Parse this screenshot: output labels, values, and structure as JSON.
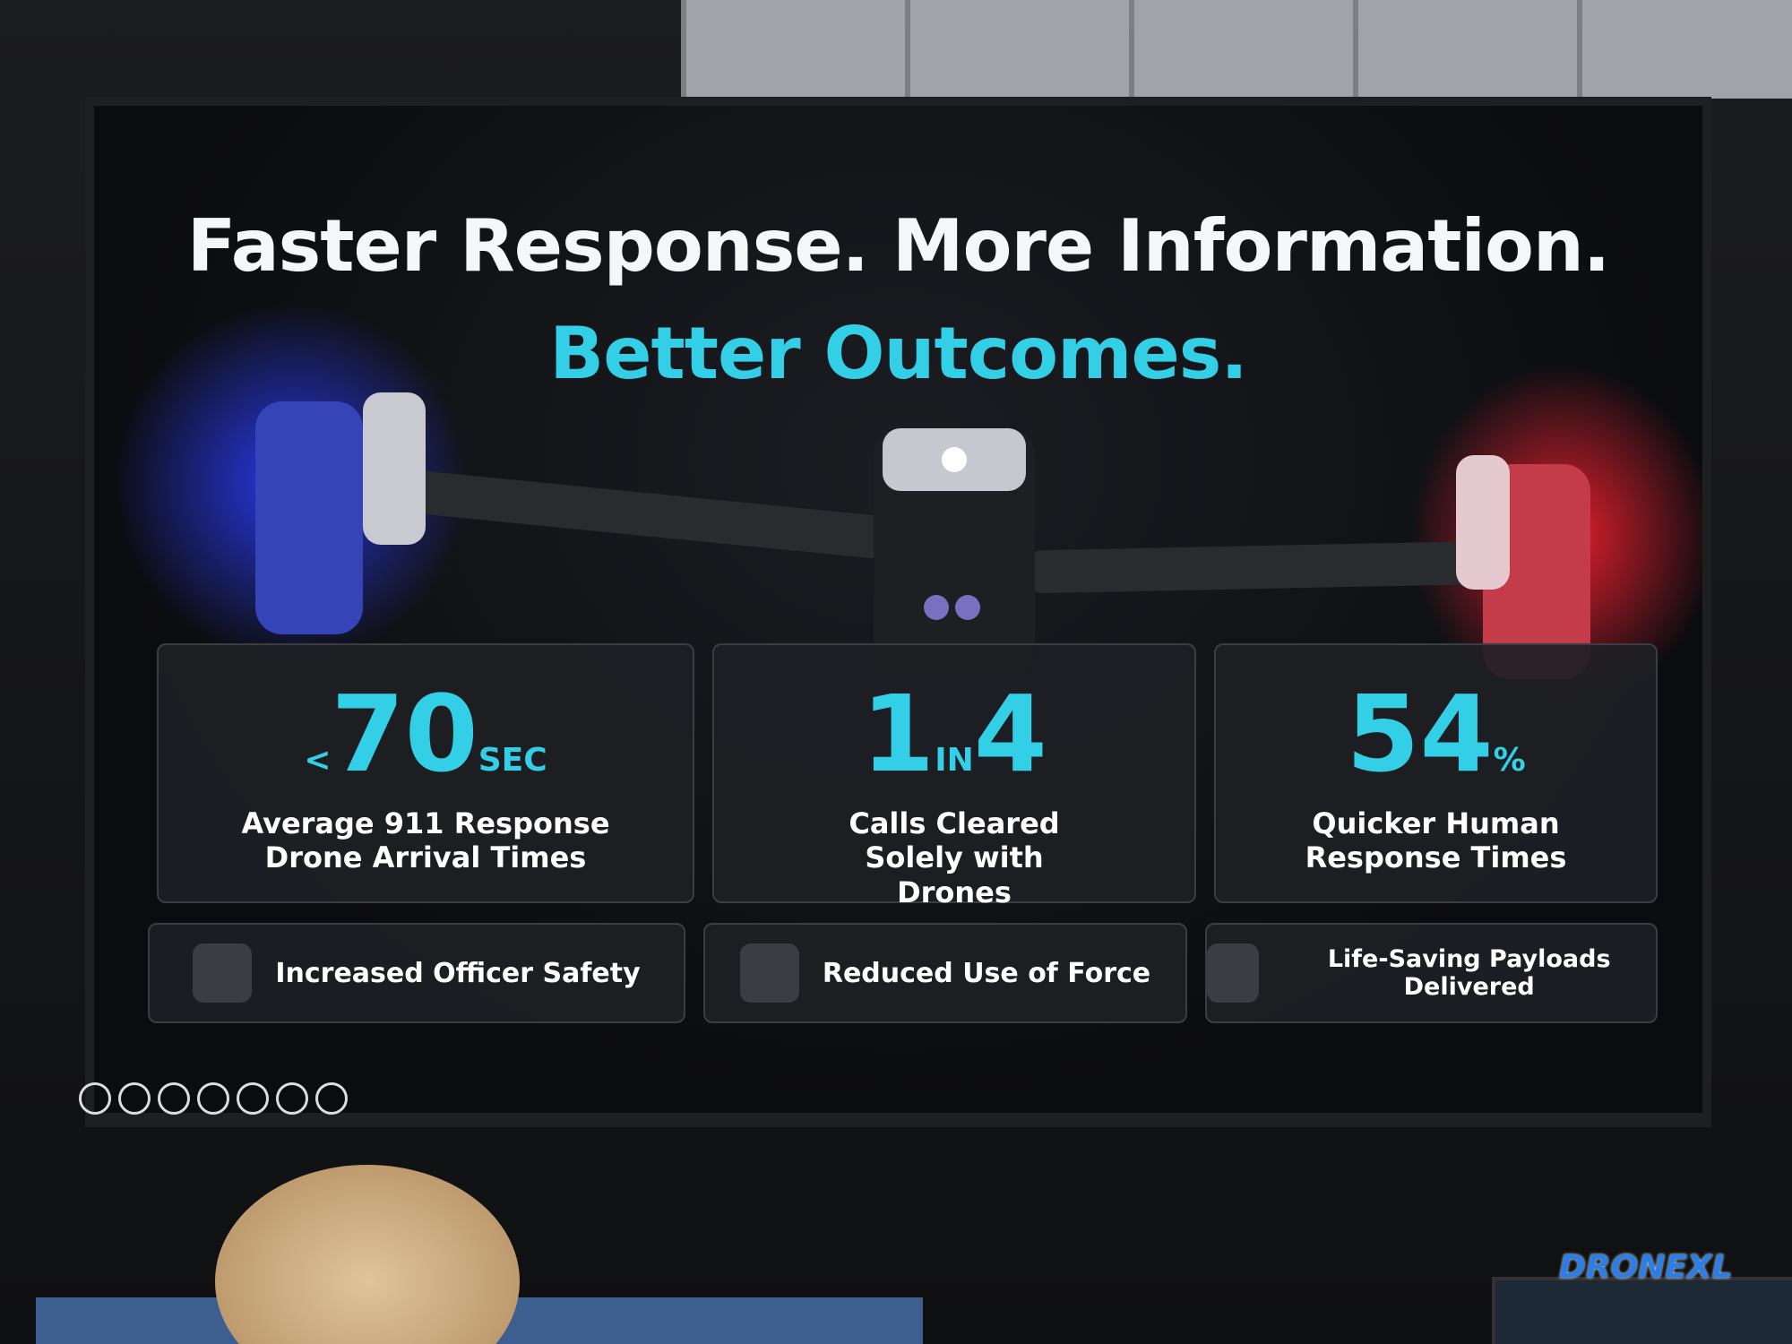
{
  "slide": {
    "title_line1": "Faster Response. More Information.",
    "title_line2": "Better Outcomes.",
    "stats": [
      {
        "parts": [
          "<",
          "70",
          "SEC"
        ],
        "label": "Average 911 Response Drone Arrival Times"
      },
      {
        "parts": [
          "1",
          "IN",
          "4"
        ],
        "label": "Calls Cleared Solely with Drones"
      },
      {
        "parts": [
          "54",
          "%"
        ],
        "label": "Quicker Human Response Times"
      }
    ],
    "features": [
      "Increased Officer Safety",
      "Reduced Use of Force",
      "Life-Saving Payloads Delivered"
    ]
  },
  "watermark": "DRONEXL"
}
